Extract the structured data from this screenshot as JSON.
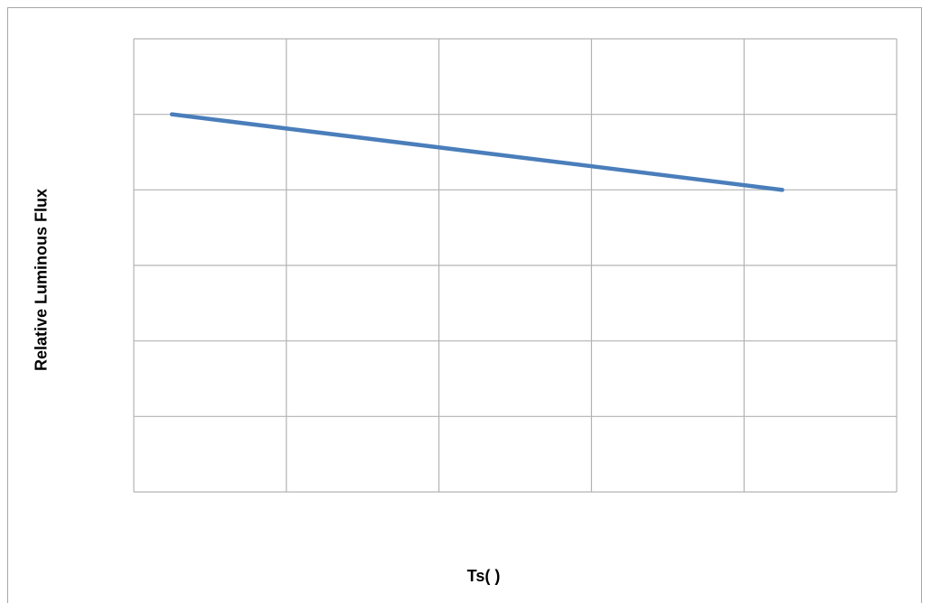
{
  "chart_data": {
    "type": "line",
    "title": "",
    "xlabel": "Ts(   )",
    "ylabel": "Relative Luminous Flux",
    "grid": true,
    "legend": "none",
    "xlim": [
      0,
      5
    ],
    "ylim": [
      0,
      6
    ],
    "series": [
      {
        "color": "#4a7ebb",
        "x": [
          0.25,
          4.25
        ],
        "y": [
          5.0,
          4.0
        ]
      }
    ]
  }
}
